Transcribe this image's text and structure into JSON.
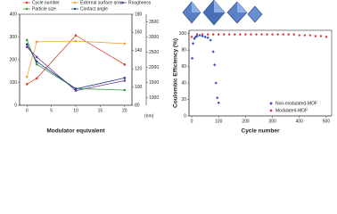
{
  "chart_data": [
    {
      "type": "line",
      "xlabel": "Modulator equivalent",
      "x": [
        0,
        2,
        10,
        20
      ],
      "xlim": [
        -1.5,
        21.5
      ],
      "xticks": [
        0,
        5,
        10,
        15,
        20
      ],
      "ylim": [
        0,
        400
      ],
      "yticks": [
        0,
        100,
        200,
        300,
        400
      ],
      "ytick_color": "#e8912a",
      "y2lim": [
        80,
        180
      ],
      "y2ticks": [
        80,
        100,
        120,
        140,
        160,
        180
      ],
      "y2tick_color": "#3b2a7a",
      "y3lim": [
        750,
        3750
      ],
      "y3ticks": [
        1000,
        1500,
        2000,
        2500,
        3000,
        3500
      ],
      "y3tick_color": "#3a9a3a",
      "y3label": "(nm)",
      "series": [
        {
          "name": "Cycle number",
          "color": "#d9402b",
          "axis": "y",
          "values": [
            93,
            118,
            307,
            179
          ]
        },
        {
          "name": "External surface area",
          "color": "#f0a030",
          "axis": "y",
          "values": [
            125,
            279,
            282,
            271
          ]
        },
        {
          "name": "Roughness",
          "color": "#6a3d9a",
          "axis": "y2",
          "values": [
            144,
            133,
            96,
            107
          ]
        },
        {
          "name": "Particle size",
          "color": "#3a9a3a",
          "axis": "y3",
          "values": [
            2900,
            2100,
            1300,
            1250
          ]
        },
        {
          "name": "Contact angle",
          "color": "#1f3a8a",
          "axis": "y2",
          "values": [
            147,
            128,
            98,
            110
          ]
        }
      ]
    },
    {
      "type": "scatter",
      "xlabel": "Cycle number",
      "ylabel": "Coulombic Efficiency (%)",
      "xlim": [
        -10,
        520
      ],
      "xticks": [
        0,
        100,
        200,
        300,
        400,
        500
      ],
      "ylim": [
        0,
        104
      ],
      "yticks": [
        0,
        20,
        40,
        60,
        80,
        100
      ],
      "series": [
        {
          "name": "Non-modulated-MOF",
          "color": "#3050c0",
          "marker": "diamond",
          "x": [
            2,
            5,
            10,
            15,
            20,
            30,
            40,
            50,
            60,
            70,
            80,
            85,
            90,
            95,
            100
          ],
          "values": [
            70,
            88,
            94,
            96,
            97,
            98,
            97,
            96,
            95,
            92,
            78,
            62,
            40,
            22,
            16
          ]
        },
        {
          "name": "Modulated-MOF",
          "color": "#e03030",
          "marker": "circle",
          "x": [
            0,
            20,
            40,
            60,
            80,
            100,
            120,
            140,
            160,
            180,
            200,
            220,
            240,
            260,
            280,
            300,
            320,
            340,
            360,
            380,
            400,
            420,
            440,
            460,
            480,
            500
          ],
          "values": [
            96,
            99,
            99,
            99,
            99,
            99,
            99,
            99,
            99,
            99,
            99,
            99,
            99,
            99,
            99,
            99,
            99,
            99,
            99,
            99,
            98,
            98,
            98,
            97,
            97,
            96
          ]
        }
      ]
    }
  ]
}
